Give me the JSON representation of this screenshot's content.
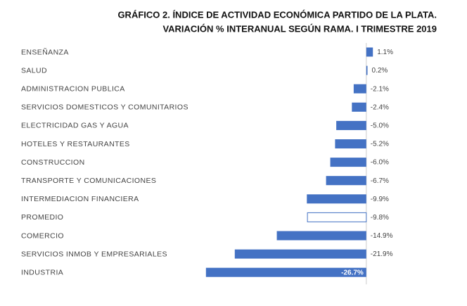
{
  "chart_data": {
    "type": "barh",
    "title": "GRÁFICO 2. ÍNDICE DE ACTIVIDAD ECONÓMICA PARTIDO DE LA PLATA.",
    "subtitle": "VARIACIÓN % INTERANUAL SEGÚN RAMA. I TRIMESTRE 2019",
    "categories": [
      "ENSEÑANZA",
      "SALUD",
      "ADMINISTRACION PUBLICA",
      "SERVICIOS DOMESTICOS Y COMUNITARIOS",
      "ELECTRICIDAD GAS Y AGUA",
      "HOTELES Y RESTAURANTES",
      "CONSTRUCCION",
      "TRANSPORTE Y COMUNICACIONES",
      "INTERMEDIACION FINANCIERA",
      "PROMEDIO",
      "COMERCIO",
      "SERVICIOS INMOB Y EMPRESARIALES",
      "INDUSTRIA"
    ],
    "values": [
      1.1,
      0.2,
      -2.1,
      -2.4,
      -5.0,
      -5.2,
      -6.0,
      -6.7,
      -9.9,
      -9.8,
      -14.9,
      -21.9,
      -26.7
    ],
    "value_labels": [
      "1.1%",
      "0.2%",
      "-2.1%",
      "-2.4%",
      "-5.0%",
      "-5.2%",
      "-6.0%",
      "-6.7%",
      "-9.9%",
      "-9.8%",
      "-14.9%",
      "-21.9%",
      "-26.7%"
    ],
    "colors": [
      "#4472c4",
      "#4472c4",
      "#4472c4",
      "#4472c4",
      "#4472c4",
      "#4472c4",
      "#4472c4",
      "#4472c4",
      "#4472c4",
      "#ffffff",
      "#4472c4",
      "#4472c4",
      "#4472c4"
    ],
    "edgecolor": "#4472c4",
    "xlim": [
      -27.5,
      5
    ]
  }
}
